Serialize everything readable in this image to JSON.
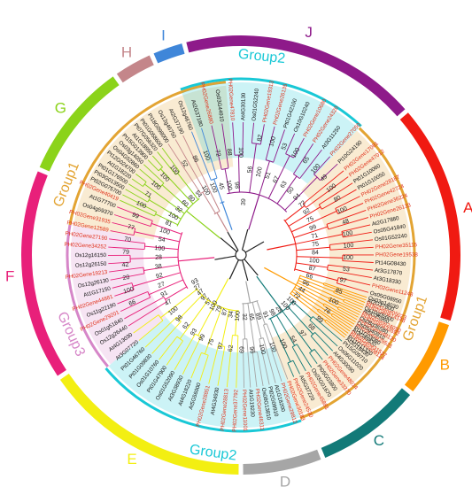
{
  "clades": [
    {
      "letter": "A",
      "color": "#f01a12"
    },
    {
      "letter": "B",
      "color": "#ff9a00"
    },
    {
      "letter": "C",
      "color": "#127a78"
    },
    {
      "letter": "D",
      "color": "#a6a6a6"
    },
    {
      "letter": "E",
      "color": "#f3ef12"
    },
    {
      "letter": "F",
      "color": "#e8207a"
    },
    {
      "letter": "G",
      "color": "#8bd31a"
    },
    {
      "letter": "H",
      "color": "#c4868a"
    },
    {
      "letter": "I",
      "color": "#3f86d9"
    },
    {
      "letter": "J",
      "color": "#8e1a8a"
    }
  ],
  "groups": [
    {
      "label": "Group1",
      "color": "#e3a433"
    },
    {
      "label": "Group1",
      "color": "#e3a433"
    },
    {
      "label": "Group2",
      "color": "#19c8d6"
    },
    {
      "label": "Group2",
      "color": "#19c8d6"
    },
    {
      "label": "Group3",
      "color": "#d686c8"
    }
  ],
  "leaves": {
    "A": [
      "PH02Gene17081",
      "PH02Gene47012",
      "Pt01G10060",
      "Pt01G10050",
      "PH02Gene28187",
      "PH02Gene42724",
      "PH02Gene36224",
      "PH02Gene26133",
      "At2G17880",
      "Os05G41840",
      "Os01G52240",
      "PH02Gene35115",
      "PH02Gene19538",
      "Pt14G08430",
      "At3G17870",
      "At3G18330",
      "PH02Gene11248",
      "Os05G08950"
    ],
    "B": [
      "Os03g14030",
      "At2G17800",
      "PH02Gene05023",
      "PH02Gene14148",
      "Os10g05600",
      "At5G25960",
      "PH02Gene24050",
      "PH02Gene33592",
      "Os08g36580",
      "PH02Gene48120",
      "Os05g40910",
      "PH02Gene29521",
      "Pt11G03080",
      "At3G49830",
      "PH02Gene31537",
      "PH02Gene08114",
      "Pt11G11320",
      "At3G18430"
    ],
    "C": [
      "Pt15G09710",
      "Os06G11020",
      "At4G30090",
      "PH02Gene48014",
      "PH02Gene33370",
      "Pt05G03800",
      "Os03G01670",
      "PH02Gene45881",
      "At5G37220",
      "PH02Gene24530"
    ],
    "D": [
      "PH02Gene30183",
      "PH02Gene29812",
      "At1G18200",
      "Pt02G09910",
      "Os08G13810",
      "PH02Gene46311",
      "At1G19230",
      "PH02Gene11001"
    ],
    "E": [
      "PH02Gene37792",
      "PH02Gene28813",
      "At4G34930",
      "PH02Gene28851",
      "At5G56000",
      "At4G18220",
      "At3G38930",
      "Os01G52090",
      "Pt01G47900",
      "Os01G10760",
      "Pt01G09830",
      "Pt01G46760",
      "At3G07720",
      "At4G13030"
    ],
    "F": [
      "Os12g26440",
      "Os01g51840",
      "PH02Gene29201",
      "Os11g22190",
      "PH02Gene44881",
      "At1G17150",
      "Os12g26130",
      "PH02Gene19213",
      "Os12g26150",
      "Os12g16150",
      "PH02Gene34252",
      "PH02Gene27190",
      "PH02Gene12589",
      "PH02Gene31935",
      "Os04g59370",
      "At1G77700"
    ],
    "G": [
      "PH02Gene40419",
      "Pt02G075700",
      "Pt03G013500",
      "Pt01G176500",
      "At1G18220",
      "Pt12G024700",
      "Os04G52860",
      "Os03g14050",
      "Pt15G013900",
      "At1G18950",
      "Pt07G056320",
      "Pt01G058600"
    ],
    "H": [
      "Pt18G098000",
      "Os12g46750",
      "At2G37190"
    ],
    "I": [
      "Os12g46760",
      "At2G37180"
    ],
    "J": [
      "PH02Gene26880",
      "Os03G44910",
      "PH02Gene47810",
      "At4G30130",
      "Os01G52240",
      "PH02Gene19313",
      "PH02Gene26135",
      "Pt01G42100",
      "Os10G10240",
      "PH02Gene10680",
      "PH02Gene24320",
      "At3G11250",
      "PH02Gene27050",
      "Pt10G24190"
    ]
  },
  "bootstrap": [
    "39",
    "56",
    "82",
    "100",
    "100",
    "51",
    "53",
    "67",
    "100",
    "63",
    "65",
    "50",
    "100",
    "94",
    "49",
    "72",
    "100",
    "92",
    "80",
    "75",
    "100",
    "99",
    "48",
    "71",
    "100",
    "75",
    "100",
    "84",
    "100",
    "100",
    "53",
    "87",
    "97",
    "66",
    "85",
    "96",
    "100",
    "44",
    "76",
    "72",
    "99",
    "100",
    "68",
    "100",
    "97",
    "28",
    "54",
    "98",
    "100",
    "91",
    "100",
    "89",
    "100",
    "65",
    "96",
    "32",
    "69",
    "100",
    "62",
    "34",
    "97",
    "87",
    "75",
    "79",
    "99",
    "100",
    "93",
    "57",
    "62",
    "97",
    "98",
    "47",
    "100",
    "27",
    "47",
    "93",
    "91",
    "66",
    "27",
    "100",
    "92",
    "20",
    "38",
    "42",
    "28",
    "79",
    "100",
    "70",
    "54",
    "77",
    "100",
    "99",
    "81",
    "100",
    "100",
    "71",
    "32",
    "100",
    "60",
    "100",
    "80",
    "100",
    "54",
    "52",
    "100",
    "86",
    "100",
    "100",
    "45",
    "72",
    "100",
    "88",
    "98",
    "100"
  ]
}
